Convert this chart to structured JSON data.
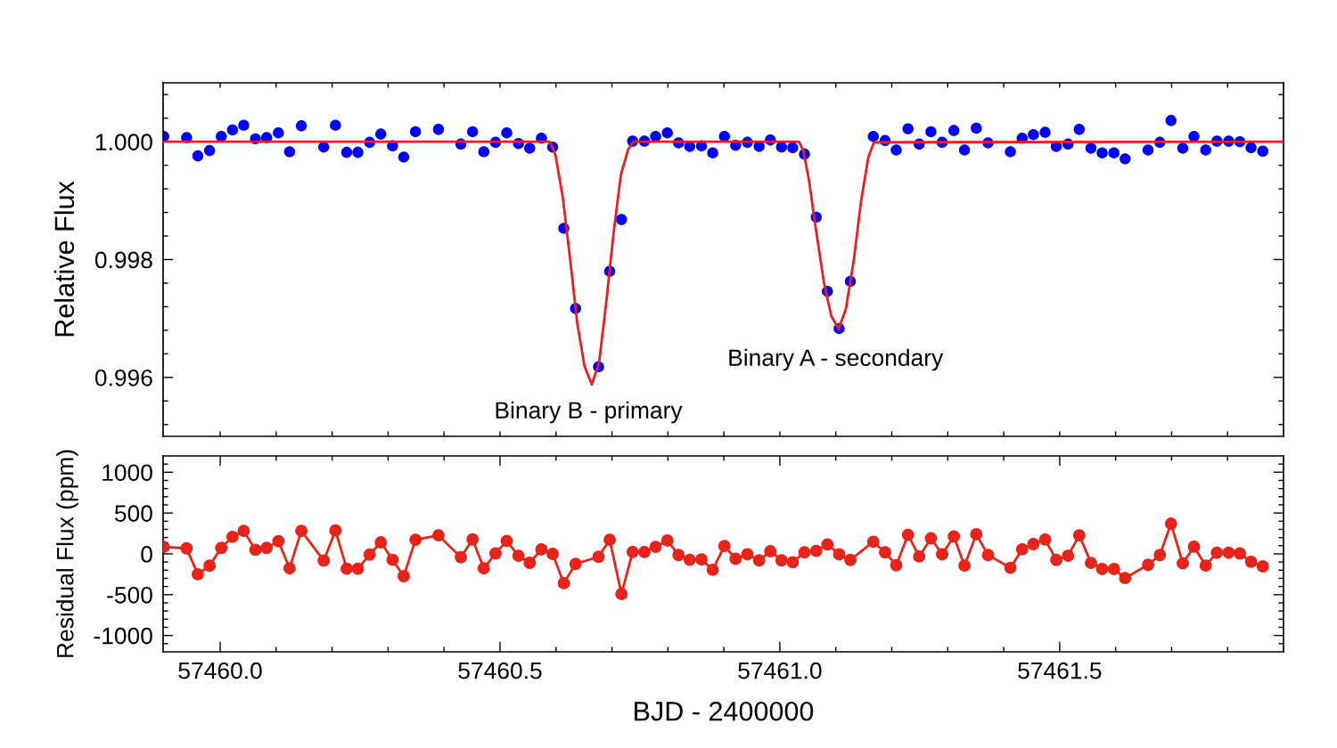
{
  "chart_data": [
    {
      "type": "scatter",
      "ylabel": "Relative Flux",
      "tick_labels": "y",
      "xlim": [
        57459.898,
        57461.9
      ],
      "ylim": [
        0.995,
        1.001
      ],
      "xticks": [
        {
          "value": 57460,
          "label": null
        },
        {
          "value": 57460.5,
          "label": null
        },
        {
          "value": 57461,
          "label": null
        },
        {
          "value": 57461.5,
          "label": null
        },
        {
          "value": 57460.1,
          "label": null
        },
        {
          "value": 57460.2,
          "label": null
        },
        {
          "value": 57460.3,
          "label": null
        },
        {
          "value": 57460.4,
          "label": null
        },
        {
          "value": 57460.6,
          "label": null
        },
        {
          "value": 57460.7,
          "label": null
        },
        {
          "value": 57460.8,
          "label": null
        },
        {
          "value": 57460.9,
          "label": null
        },
        {
          "value": 57461.1,
          "label": null
        },
        {
          "value": 57461.2,
          "label": null
        },
        {
          "value": 57461.3,
          "label": null
        },
        {
          "value": 57461.4,
          "label": null
        },
        {
          "value": 57461.6,
          "label": null
        },
        {
          "value": 57461.7,
          "label": null
        },
        {
          "value": 57461.8,
          "label": null
        },
        {
          "value": 57461.9,
          "label": null
        }
      ],
      "yticks": [
        {
          "value": 0.996,
          "label": "0.996"
        },
        {
          "value": 0.998,
          "label": "0.998"
        },
        {
          "value": 1.0,
          "label": "1.000"
        },
        {
          "value": 0.9952,
          "label": null
        },
        {
          "value": 0.9956,
          "label": null
        },
        {
          "value": 0.9964,
          "label": null
        },
        {
          "value": 0.9968,
          "label": null
        },
        {
          "value": 0.9972,
          "label": null
        },
        {
          "value": 0.9976,
          "label": null
        },
        {
          "value": 0.9984,
          "label": null
        },
        {
          "value": 0.9988,
          "label": null
        },
        {
          "value": 0.9992,
          "label": null
        },
        {
          "value": 0.9996,
          "label": null
        },
        {
          "value": 1.0004,
          "label": null
        },
        {
          "value": 1.0008,
          "label": null
        }
      ],
      "annotations": [
        "Binary B - primary",
        "Binary A - secondary"
      ],
      "series": [
        {
          "type": "scatter",
          "color": "#0000ff",
          "marker": "circle",
          "x": [
            57459.899,
            57459.94,
            57459.96,
            57459.981,
            57460.002,
            57460.022,
            57460.042,
            57460.063,
            57460.083,
            57460.104,
            57460.124,
            57460.145,
            57460.185,
            57460.206,
            57460.226,
            57460.246,
            57460.267,
            57460.287,
            57460.308,
            57460.328,
            57460.349,
            57460.39,
            57460.43,
            57460.451,
            57460.471,
            57460.492,
            57460.512,
            57460.533,
            57460.553,
            57460.574,
            57460.594,
            57460.614,
            57460.635,
            57460.676,
            57460.696,
            57460.717,
            57460.737,
            57460.758,
            57460.778,
            57460.799,
            57460.819,
            57460.839,
            57460.86,
            57460.88,
            57460.901,
            57460.921,
            57460.942,
            57460.963,
            57460.983,
            57461.003,
            57461.023,
            57461.044,
            57461.065,
            57461.085,
            57461.106,
            57461.126,
            57461.167,
            57461.188,
            57461.208,
            57461.229,
            57461.249,
            57461.27,
            57461.29,
            57461.311,
            57461.33,
            57461.351,
            57461.372,
            57461.412,
            57461.433,
            57461.453,
            57461.474,
            57461.494,
            57461.515,
            57461.535,
            57461.556,
            57461.576,
            57461.597,
            57461.617,
            57461.658,
            57461.679,
            57461.699,
            57461.72,
            57461.74,
            57461.761,
            57461.781,
            57461.802,
            57461.822,
            57461.842,
            57461.863
          ],
          "values": [
            1.00009,
            1.00007,
            0.99976,
            0.99985,
            1.00009,
            1.0002,
            1.00028,
            1.00005,
            1.00007,
            1.00015,
            0.99983,
            1.00027,
            0.99991,
            1.00028,
            0.99982,
            0.99982,
            0.99999,
            1.00013,
            0.99993,
            0.99974,
            1.00017,
            1.00021,
            0.99996,
            1.00017,
            0.99983,
            0.99999,
            1.00015,
            0.99997,
            0.99989,
            1.00006,
            0.99991,
            0.99853,
            0.99717,
            0.99618,
            0.9978,
            0.99868,
            1.00001,
            1.00001,
            1.00009,
            1.00015,
            0.99998,
            0.99992,
            0.99993,
            0.99981,
            1.00009,
            0.99994,
            0.99999,
            0.99992,
            1.00003,
            0.99991,
            0.9999,
            0.99979,
            0.99872,
            0.99746,
            0.99683,
            0.99763,
            1.00009,
            1.00002,
            0.99986,
            1.00022,
            0.99996,
            1.00017,
            0.99999,
            1.00019,
            0.99986,
            1.00023,
            0.99998,
            0.99983,
            1.00006,
            1.00012,
            1.00016,
            0.99992,
            0.99996,
            1.00021,
            0.99989,
            0.99981,
            0.99981,
            0.99971,
            0.99986,
            0.99999,
            1.00036,
            0.99989,
            1.00009,
            0.99986,
            1.00001,
            1.00001,
            1.0,
            0.9999,
            0.99984
          ]
        },
        {
          "type": "line",
          "color": "#ee1c1c",
          "marker": "none",
          "x": [
            57459.898,
            57460.589,
            57460.599,
            57460.612,
            57460.625,
            57460.638,
            57460.651,
            57460.664,
            57460.677,
            57460.69,
            57460.703,
            57460.716,
            57460.729,
            57460.738,
            57461.034,
            57461.042,
            57461.052,
            57461.065,
            57461.079,
            57461.092,
            57461.105,
            57461.118,
            57461.132,
            57461.145,
            57461.158,
            57461.168,
            57461.9
          ],
          "values": [
            1.0,
            1.0,
            0.99978,
            0.99907,
            0.99803,
            0.99692,
            0.99619,
            0.99588,
            0.99625,
            0.99729,
            0.99846,
            0.99944,
            0.99987,
            1.0,
            1.0,
            0.99985,
            0.99935,
            0.99848,
            0.9976,
            0.99704,
            0.99682,
            0.99716,
            0.99798,
            0.99898,
            0.99973,
            0.99999,
            1.0
          ]
        }
      ]
    },
    {
      "type": "line",
      "xlabel": "BJD - 2400000",
      "ylabel": "Residual Flux (ppm)",
      "xlim": [
        57459.898,
        57461.9
      ],
      "ylim": [
        -1200,
        1200
      ],
      "marker": "circle",
      "xticks": [
        {
          "value": 57460,
          "label": "57460.0"
        },
        {
          "value": 57460.5,
          "label": "57460.5"
        },
        {
          "value": 57461,
          "label": "57461.0"
        },
        {
          "value": 57461.5,
          "label": "57461.5"
        },
        {
          "value": 57460.1,
          "label": null
        },
        {
          "value": 57460.2,
          "label": null
        },
        {
          "value": 57460.3,
          "label": null
        },
        {
          "value": 57460.4,
          "label": null
        },
        {
          "value": 57460.6,
          "label": null
        },
        {
          "value": 57460.7,
          "label": null
        },
        {
          "value": 57460.8,
          "label": null
        },
        {
          "value": 57460.9,
          "label": null
        },
        {
          "value": 57461.1,
          "label": null
        },
        {
          "value": 57461.2,
          "label": null
        },
        {
          "value": 57461.3,
          "label": null
        },
        {
          "value": 57461.4,
          "label": null
        },
        {
          "value": 57461.6,
          "label": null
        },
        {
          "value": 57461.7,
          "label": null
        },
        {
          "value": 57461.8,
          "label": null
        },
        {
          "value": 57461.9,
          "label": null
        }
      ],
      "yticks": [
        1000,
        500,
        0,
        {
          "value": -500,
          "label": "-500"
        },
        {
          "value": -1000,
          "label": "-1000"
        },
        {
          "value": -1100,
          "label": null
        },
        {
          "value": -900,
          "label": null
        },
        {
          "value": -800,
          "label": null
        },
        {
          "value": -700,
          "label": null
        },
        {
          "value": -600,
          "label": null
        },
        {
          "value": -400,
          "label": null
        },
        {
          "value": -300,
          "label": null
        },
        {
          "value": -200,
          "label": null
        },
        {
          "value": -100,
          "label": null
        },
        {
          "value": 100,
          "label": null
        },
        {
          "value": 200,
          "label": null
        },
        {
          "value": 300,
          "label": null
        },
        {
          "value": 400,
          "label": null
        },
        {
          "value": 600,
          "label": null
        },
        {
          "value": 700,
          "label": null
        },
        {
          "value": 800,
          "label": null
        },
        {
          "value": 900,
          "label": null
        },
        {
          "value": 1100,
          "label": null
        }
      ],
      "series": [
        {
          "color": "#e8231a",
          "x": [
            57459.899,
            57459.94,
            57459.96,
            57459.981,
            57460.002,
            57460.022,
            57460.042,
            57460.063,
            57460.083,
            57460.104,
            57460.124,
            57460.145,
            57460.185,
            57460.206,
            57460.226,
            57460.246,
            57460.267,
            57460.287,
            57460.308,
            57460.328,
            57460.349,
            57460.39,
            57460.43,
            57460.451,
            57460.471,
            57460.492,
            57460.512,
            57460.533,
            57460.553,
            57460.574,
            57460.594,
            57460.614,
            57460.635,
            57460.676,
            57460.696,
            57460.717,
            57460.737,
            57460.758,
            57460.778,
            57460.799,
            57460.819,
            57460.839,
            57460.86,
            57460.88,
            57460.901,
            57460.921,
            57460.942,
            57460.963,
            57460.983,
            57461.003,
            57461.023,
            57461.044,
            57461.065,
            57461.085,
            57461.106,
            57461.126,
            57461.167,
            57461.188,
            57461.208,
            57461.229,
            57461.249,
            57461.27,
            57461.29,
            57461.311,
            57461.33,
            57461.351,
            57461.372,
            57461.412,
            57461.433,
            57461.453,
            57461.474,
            57461.494,
            57461.515,
            57461.535,
            57461.556,
            57461.576,
            57461.597,
            57461.617,
            57461.658,
            57461.679,
            57461.699,
            57461.72,
            57461.74,
            57461.761,
            57461.781,
            57461.802,
            57461.822,
            57461.842,
            57461.863
          ],
          "values": [
            86,
            68,
            -250,
            -145,
            73,
            209,
            282,
            50,
            73,
            155,
            -177,
            282,
            -82,
            286,
            -182,
            -182,
            -9,
            141,
            -73,
            -273,
            173,
            227,
            -41,
            177,
            -177,
            5,
            159,
            -23,
            -109,
            55,
            0,
            -359,
            -123,
            -36,
            173,
            -491,
            23,
            23,
            86,
            164,
            -14,
            -73,
            -68,
            -195,
            97,
            -60,
            -5,
            -79,
            32,
            -79,
            -102,
            19,
            37,
            116,
            -5,
            -74,
            148,
            19,
            -139,
            232,
            -32,
            190,
            -5,
            213,
            -144,
            241,
            -14,
            -171,
            56,
            120,
            176,
            -74,
            -23,
            227,
            -111,
            -185,
            -185,
            -296,
            -134,
            -14,
            370,
            -116,
            88,
            -144,
            14,
            14,
            5,
            -97,
            -153
          ]
        }
      ]
    }
  ]
}
